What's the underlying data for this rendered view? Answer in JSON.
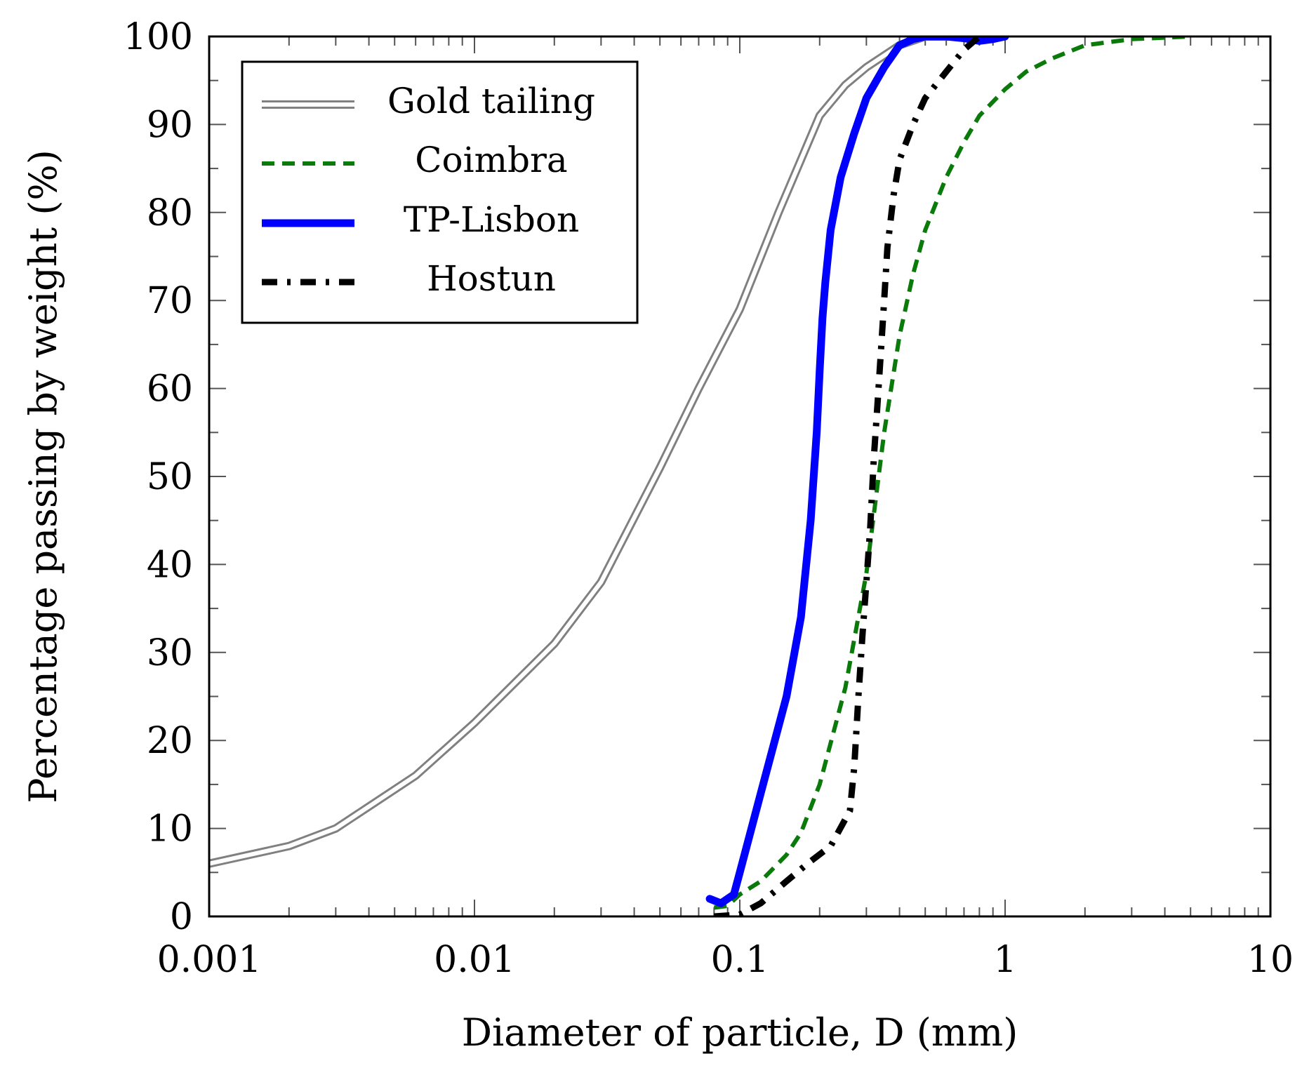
{
  "chart_data": {
    "type": "line",
    "xlabel": "Diameter of particle, D (mm)",
    "ylabel": "Percentage passing by weight (%)",
    "x_scale": "log",
    "xlim": [
      0.001,
      10
    ],
    "ylim": [
      0,
      100
    ],
    "x_ticks": [
      "0.001",
      "0.01",
      "0.1",
      "1",
      "10"
    ],
    "y_ticks": [
      "0",
      "10",
      "20",
      "30",
      "40",
      "50",
      "60",
      "70",
      "80",
      "90",
      "100"
    ],
    "legend_position": "top-left",
    "grid": false,
    "series": [
      {
        "name": "Gold tailing",
        "color": "#808080",
        "style": "double",
        "x": [
          0.001,
          0.002,
          0.003,
          0.006,
          0.01,
          0.02,
          0.03,
          0.05,
          0.07,
          0.1,
          0.14,
          0.2,
          0.25,
          0.3,
          0.4,
          0.5,
          0.7
        ],
        "y": [
          6,
          8,
          10,
          16,
          22,
          31,
          38,
          51,
          60,
          69,
          80,
          91,
          94.5,
          96.5,
          99,
          100,
          100
        ]
      },
      {
        "name": "Coimbra",
        "color": "#0a7a0a",
        "style": "dashed",
        "x": [
          0.08,
          0.09,
          0.1,
          0.12,
          0.15,
          0.17,
          0.2,
          0.25,
          0.3,
          0.35,
          0.4,
          0.45,
          0.5,
          0.6,
          0.7,
          0.8,
          1,
          1.2,
          1.5,
          2,
          3,
          5
        ],
        "y": [
          1,
          1.2,
          2.5,
          4,
          7,
          9.5,
          15,
          26,
          39,
          55,
          66,
          73,
          78,
          84,
          88,
          91,
          94,
          96,
          97.5,
          99,
          99.7,
          100
        ]
      },
      {
        "name": "TP-Lisbon",
        "color": "#0000ff",
        "style": "solid",
        "x": [
          0.077,
          0.085,
          0.095,
          0.1,
          0.12,
          0.15,
          0.17,
          0.185,
          0.195,
          0.2,
          0.205,
          0.21,
          0.22,
          0.24,
          0.27,
          0.3,
          0.35,
          0.4,
          0.45,
          0.5,
          0.6,
          0.7,
          0.8,
          0.9,
          1
        ],
        "y": [
          2,
          1.5,
          2.5,
          5,
          14,
          25,
          34,
          45,
          55,
          62,
          68,
          72,
          78,
          84,
          89,
          93,
          96.5,
          99,
          99.7,
          100,
          100,
          99.8,
          99.5,
          99.7,
          100
        ]
      },
      {
        "name": "Hostun",
        "color": "#000000",
        "style": "dashdot",
        "x": [
          0.08,
          0.1,
          0.12,
          0.15,
          0.18,
          0.22,
          0.26,
          0.27,
          0.28,
          0.29,
          0.3,
          0.31,
          0.32,
          0.33,
          0.34,
          0.35,
          0.36,
          0.38,
          0.4,
          0.45,
          0.5,
          0.6,
          0.7,
          0.8
        ],
        "y": [
          0,
          0.2,
          1.5,
          4,
          6,
          8,
          12,
          17,
          25,
          32,
          38,
          44,
          52,
          58,
          64,
          70,
          76,
          82,
          86,
          90,
          93,
          96,
          98.5,
          100
        ]
      }
    ]
  }
}
